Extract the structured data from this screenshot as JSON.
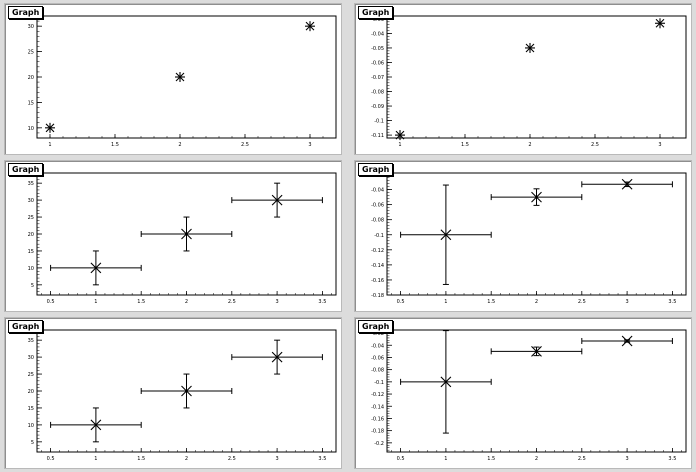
{
  "chart_data": [
    {
      "type": "scatter",
      "title": "Graph",
      "xlabel": "",
      "ylabel": "",
      "xlim": [
        0.9,
        3.2
      ],
      "ylim": [
        8,
        32
      ],
      "xticks": [
        1,
        1.5,
        2,
        2.5,
        3
      ],
      "xtick_labels": [
        "1",
        "1.5",
        "2",
        "2.5",
        "3"
      ],
      "yticks": [
        10,
        15,
        20,
        25,
        30
      ],
      "ytick_labels": [
        "10",
        "15",
        "20",
        "25",
        "30"
      ],
      "marker": "star",
      "x": [
        1,
        2,
        3
      ],
      "y": [
        10,
        20,
        30
      ],
      "xerr": [],
      "yerr": []
    },
    {
      "type": "scatter",
      "title": "Graph",
      "xlabel": "",
      "ylabel": "",
      "xlim": [
        0.9,
        3.2
      ],
      "ylim": [
        -0.112,
        -0.028
      ],
      "xticks": [
        1,
        1.5,
        2,
        2.5,
        3
      ],
      "xtick_labels": [
        "1",
        "1.5",
        "2",
        "2.5",
        "3"
      ],
      "yticks": [
        -0.03,
        -0.04,
        -0.05,
        -0.06,
        -0.07,
        -0.08,
        -0.09,
        -0.1,
        -0.11
      ],
      "ytick_labels": [
        "-0.03",
        "-0.04",
        "-0.05",
        "-0.06",
        "-0.07",
        "-0.08",
        "-0.09",
        "-0.1",
        "-0.11"
      ],
      "marker": "star",
      "x": [
        1,
        2,
        3
      ],
      "y": [
        -0.11,
        -0.05,
        -0.033
      ],
      "xerr": [],
      "yerr": []
    },
    {
      "type": "scatter",
      "title": "Graph",
      "xlabel": "",
      "ylabel": "",
      "xlim": [
        0.35,
        3.65
      ],
      "ylim": [
        2,
        38
      ],
      "xticks": [
        0.5,
        1,
        1.5,
        2,
        2.5,
        3,
        3.5
      ],
      "xtick_labels": [
        "0.5",
        "1",
        "1.5",
        "2",
        "2.5",
        "3",
        "3.5"
      ],
      "yticks": [
        5,
        10,
        15,
        20,
        25,
        30,
        35
      ],
      "ytick_labels": [
        "5",
        "10",
        "15",
        "20",
        "25",
        "30",
        "35"
      ],
      "marker": "x",
      "x": [
        1,
        2,
        3
      ],
      "y": [
        10,
        20,
        30
      ],
      "xerr": [
        0.5,
        0.5,
        0.5
      ],
      "yerr": [
        5,
        5,
        5
      ]
    },
    {
      "type": "scatter",
      "title": "Graph",
      "xlabel": "",
      "ylabel": "",
      "xlim": [
        0.35,
        3.65
      ],
      "ylim": [
        -0.18,
        -0.018
      ],
      "xticks": [
        0.5,
        1,
        1.5,
        2,
        2.5,
        3,
        3.5
      ],
      "xtick_labels": [
        "0.5",
        "1",
        "1.5",
        "2",
        "2.5",
        "3",
        "3.5"
      ],
      "yticks": [
        -0.02,
        -0.04,
        -0.06,
        -0.08,
        -0.1,
        -0.12,
        -0.14,
        -0.16,
        -0.18
      ],
      "ytick_labels": [
        "-0.02",
        "-0.04",
        "-0.06",
        "-0.08",
        "-0.1",
        "-0.12",
        "-0.14",
        "-0.16",
        "-0.18"
      ],
      "marker": "x",
      "x": [
        1,
        2,
        3
      ],
      "y": [
        -0.1,
        -0.05,
        -0.033
      ],
      "xerr": [
        0.5,
        0.5,
        0.5
      ],
      "yerr": [
        0.066,
        0.011,
        0.003
      ]
    },
    {
      "type": "scatter",
      "title": "Graph",
      "xlabel": "",
      "ylabel": "",
      "xlim": [
        0.35,
        3.65
      ],
      "ylim": [
        2,
        38
      ],
      "xticks": [
        0.5,
        1,
        1.5,
        2,
        2.5,
        3,
        3.5
      ],
      "xtick_labels": [
        "0.5",
        "1",
        "1.5",
        "2",
        "2.5",
        "3",
        "3.5"
      ],
      "yticks": [
        5,
        10,
        15,
        20,
        25,
        30,
        35
      ],
      "ytick_labels": [
        "5",
        "10",
        "15",
        "20",
        "25",
        "30",
        "35"
      ],
      "marker": "x",
      "x": [
        1,
        2,
        3
      ],
      "y": [
        10,
        20,
        30
      ],
      "xerr": [
        0.5,
        0.5,
        0.5
      ],
      "yerr": [
        5,
        5,
        5
      ]
    },
    {
      "type": "scatter",
      "title": "Graph",
      "xlabel": "",
      "ylabel": "",
      "xlim": [
        0.35,
        3.65
      ],
      "ylim": [
        -0.215,
        -0.015
      ],
      "xticks": [
        0.5,
        1,
        1.5,
        2,
        2.5,
        3,
        3.5
      ],
      "xtick_labels": [
        "0.5",
        "1",
        "1.5",
        "2",
        "2.5",
        "3",
        "3.5"
      ],
      "yticks": [
        -0.02,
        -0.04,
        -0.06,
        -0.08,
        -0.1,
        -0.12,
        -0.14,
        -0.16,
        -0.18,
        -0.2
      ],
      "ytick_labels": [
        "-0.02",
        "-0.04",
        "-0.06",
        "-0.08",
        "-0.1",
        "-0.12",
        "-0.14",
        "-0.16",
        "-0.18",
        "-0.2"
      ],
      "marker": "x",
      "x": [
        1,
        2,
        3
      ],
      "y": [
        -0.1,
        -0.05,
        -0.033
      ],
      "xerr": [
        0.5,
        0.5,
        0.5
      ],
      "yerr": [
        0.084,
        0.007,
        0.002
      ]
    }
  ]
}
